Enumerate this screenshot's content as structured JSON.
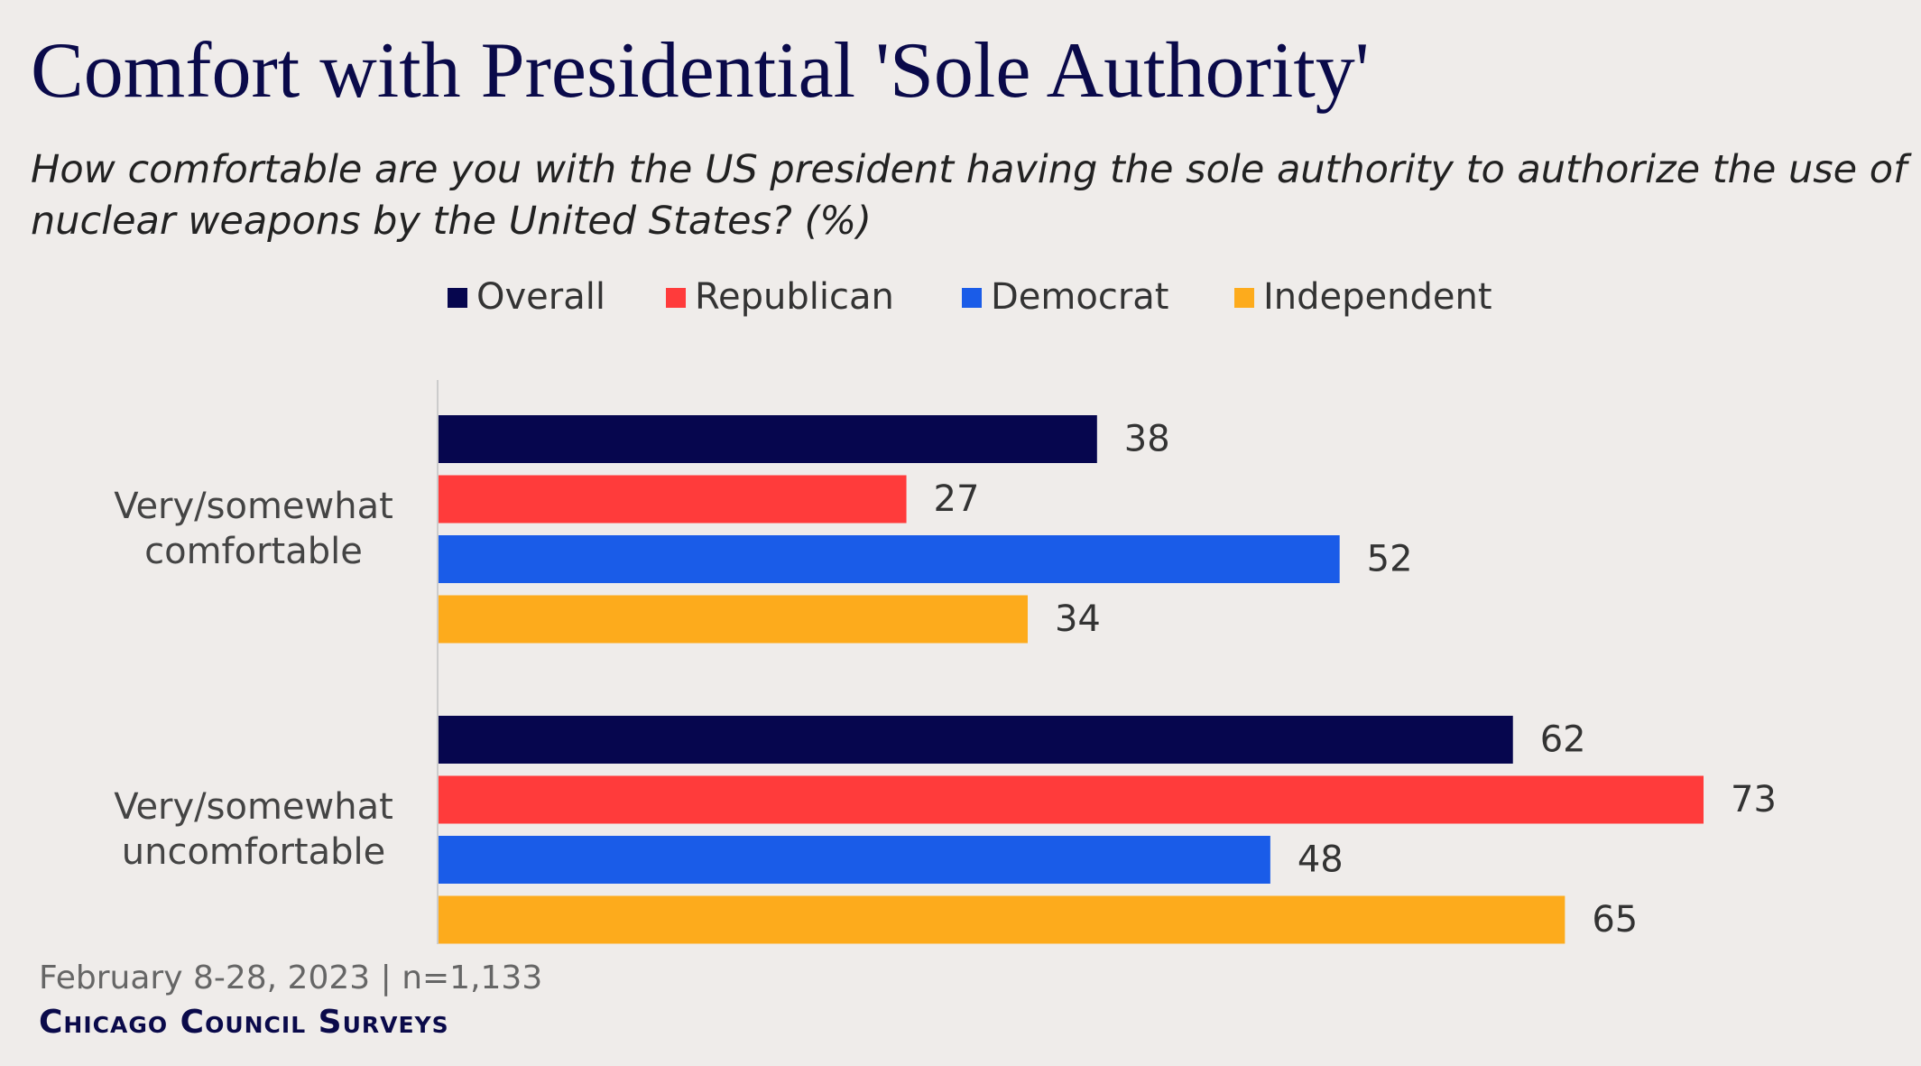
{
  "chart_data": {
    "type": "hbar",
    "title": "Comfort with Presidential 'Sole Authority'",
    "subtitle": "How comfortable are you with the US president having the sole authority to authorize the use of nuclear weapons by the United States? (%)",
    "categories": [
      "Very/somewhat comfortable",
      "Very/somewhat uncomfortable"
    ],
    "series": [
      {
        "name": "Overall",
        "color": "#06064e",
        "values": [
          38,
          62
        ]
      },
      {
        "name": "Republican",
        "color": "#ff3b3b",
        "values": [
          27,
          73
        ]
      },
      {
        "name": "Democrat",
        "color": "#1a5ce8",
        "values": [
          52,
          48
        ]
      },
      {
        "name": "Independent",
        "color": "#fdab1c",
        "values": [
          34,
          65
        ]
      }
    ],
    "note": "February 8-28, 2023 | n=1,133",
    "source": "Chicago Council Surveys"
  }
}
